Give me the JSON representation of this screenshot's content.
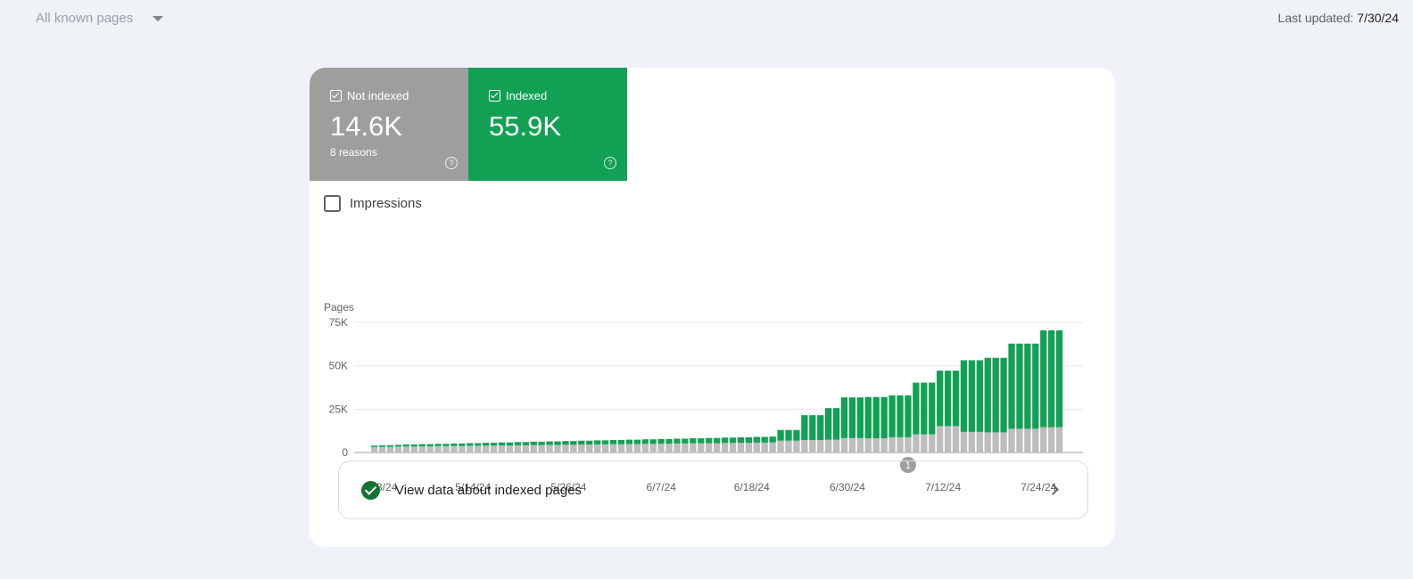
{
  "filter": {
    "label": "All known pages"
  },
  "last_updated": {
    "label": "Last updated:",
    "date": "7/30/24"
  },
  "tiles": {
    "not_indexed": {
      "label": "Not indexed",
      "value": "14.6K",
      "sub": "8 reasons",
      "color": "#9e9e9e"
    },
    "indexed": {
      "label": "Indexed",
      "value": "55.9K",
      "color": "#12a055"
    }
  },
  "impressions": {
    "label": "Impressions",
    "checked": false
  },
  "annotation": {
    "label": "1",
    "x_index": 67
  },
  "chart_data": {
    "type": "bar",
    "stacked": true,
    "ylabel": "Pages",
    "ylim": [
      0,
      75000
    ],
    "y_ticks": [
      "0",
      "25K",
      "50K",
      "75K"
    ],
    "y_tick_values": [
      0,
      25000,
      50000,
      75000
    ],
    "x_tick_labels": [
      "5/3/24",
      "5/14/24",
      "5/26/24",
      "6/7/24",
      "6/18/24",
      "6/30/24",
      "7/12/24",
      "7/24/24"
    ],
    "x_tick_indices": [
      0,
      11,
      23,
      35,
      46,
      58,
      70,
      82
    ],
    "categories_start": "5/3/24",
    "categories_end": "7/30/24",
    "grid": true,
    "series": [
      {
        "name": "Not indexed",
        "color": "#bdbdbd",
        "values": [
          3200,
          3300,
          3300,
          3400,
          3500,
          3500,
          3600,
          3600,
          3700,
          3700,
          3800,
          3800,
          3900,
          3900,
          4000,
          4000,
          4100,
          4100,
          4200,
          4200,
          4300,
          4300,
          4400,
          4400,
          4500,
          4500,
          4600,
          4600,
          4700,
          4700,
          4800,
          4800,
          4900,
          4900,
          5000,
          5000,
          5100,
          5100,
          5200,
          5200,
          5300,
          5300,
          5400,
          5400,
          5500,
          5500,
          5600,
          5600,
          5700,
          5700,
          5800,
          6800,
          6800,
          6800,
          7200,
          7200,
          7200,
          7400,
          7400,
          8300,
          8300,
          8300,
          8200,
          8200,
          8200,
          8800,
          8800,
          8800,
          10500,
          10500,
          10500,
          15200,
          15200,
          15200,
          11900,
          11900,
          11900,
          11600,
          11600,
          11600,
          13700,
          13700,
          13700,
          13700,
          14600,
          14600,
          14600
        ]
      },
      {
        "name": "Indexed",
        "color": "#12a055",
        "values": [
          800,
          900,
          900,
          1000,
          1100,
          1100,
          1200,
          1200,
          1300,
          1300,
          1400,
          1400,
          1500,
          1500,
          1600,
          1600,
          1700,
          1700,
          1800,
          1800,
          1900,
          1900,
          2000,
          2000,
          2100,
          2100,
          2200,
          2200,
          2300,
          2300,
          2400,
          2400,
          2500,
          2500,
          2600,
          2600,
          2700,
          2700,
          2800,
          2800,
          2900,
          2900,
          3000,
          3000,
          3100,
          3100,
          3200,
          3200,
          3300,
          3300,
          3400,
          6200,
          6200,
          6200,
          14300,
          14300,
          14300,
          18200,
          18200,
          23500,
          23500,
          23500,
          23800,
          23800,
          23800,
          24200,
          24200,
          24200,
          29800,
          29800,
          29800,
          32000,
          32000,
          32000,
          41300,
          41300,
          41300,
          43000,
          43000,
          43000,
          49100,
          49100,
          49100,
          49100,
          55900,
          55900,
          55900
        ]
      }
    ]
  }
}
